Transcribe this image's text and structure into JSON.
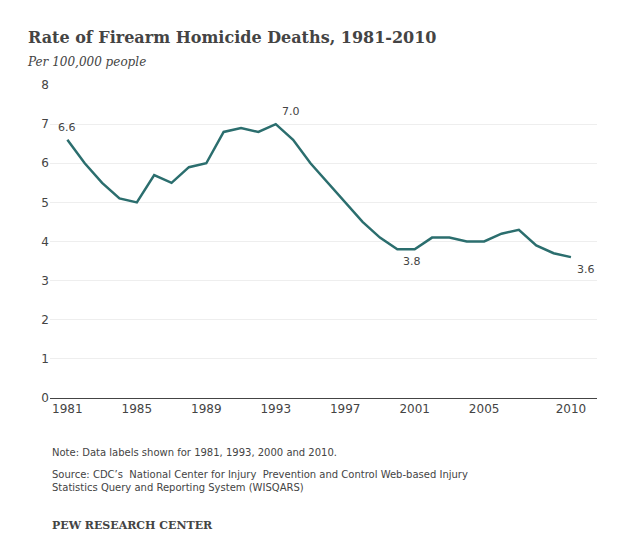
{
  "chart_data": {
    "type": "line",
    "title": "Rate of Firearm Homicide Deaths, 1981-2010",
    "subtitle": "Per 100,000 people",
    "x": [
      1981,
      1982,
      1983,
      1984,
      1985,
      1986,
      1987,
      1988,
      1989,
      1990,
      1991,
      1992,
      1993,
      1994,
      1995,
      1996,
      1997,
      1998,
      1999,
      2000,
      2001,
      2002,
      2003,
      2004,
      2005,
      2006,
      2007,
      2008,
      2009,
      2010
    ],
    "values": [
      6.6,
      6.0,
      5.5,
      5.1,
      5.0,
      5.7,
      5.5,
      5.9,
      6.0,
      6.8,
      6.9,
      6.8,
      7.0,
      6.6,
      6.0,
      5.5,
      5.0,
      4.5,
      4.1,
      3.8,
      3.8,
      4.1,
      4.1,
      4.0,
      4.0,
      4.2,
      4.3,
      3.9,
      3.7,
      3.6
    ],
    "color": "#2b6e6e",
    "xlim": [
      1980,
      2011.5
    ],
    "xticks": [
      1981,
      1985,
      1989,
      1993,
      1997,
      2001,
      2005,
      2010
    ],
    "ylim": [
      0,
      8
    ],
    "yticks": [
      0,
      1,
      2,
      3,
      4,
      5,
      6,
      7,
      8
    ],
    "grid": true,
    "annotations": [
      {
        "x": 1981,
        "y": 6.6,
        "text": "6.6"
      },
      {
        "x": 1993,
        "y": 7.0,
        "text": "7.0"
      },
      {
        "x": 2000,
        "y": 3.8,
        "text": "3.8"
      },
      {
        "x": 2010,
        "y": 3.6,
        "text": "3.6"
      }
    ],
    "note": "Note: Data labels shown for 1981, 1993, 2000 and 2010.",
    "source": [
      "Source: CDC’s  National Center for Injury  Prevention and Control Web-based Injury",
      "Statistics Query and Reporting System (WISQARS)"
    ],
    "footer": "PEW RESEARCH CENTER"
  }
}
